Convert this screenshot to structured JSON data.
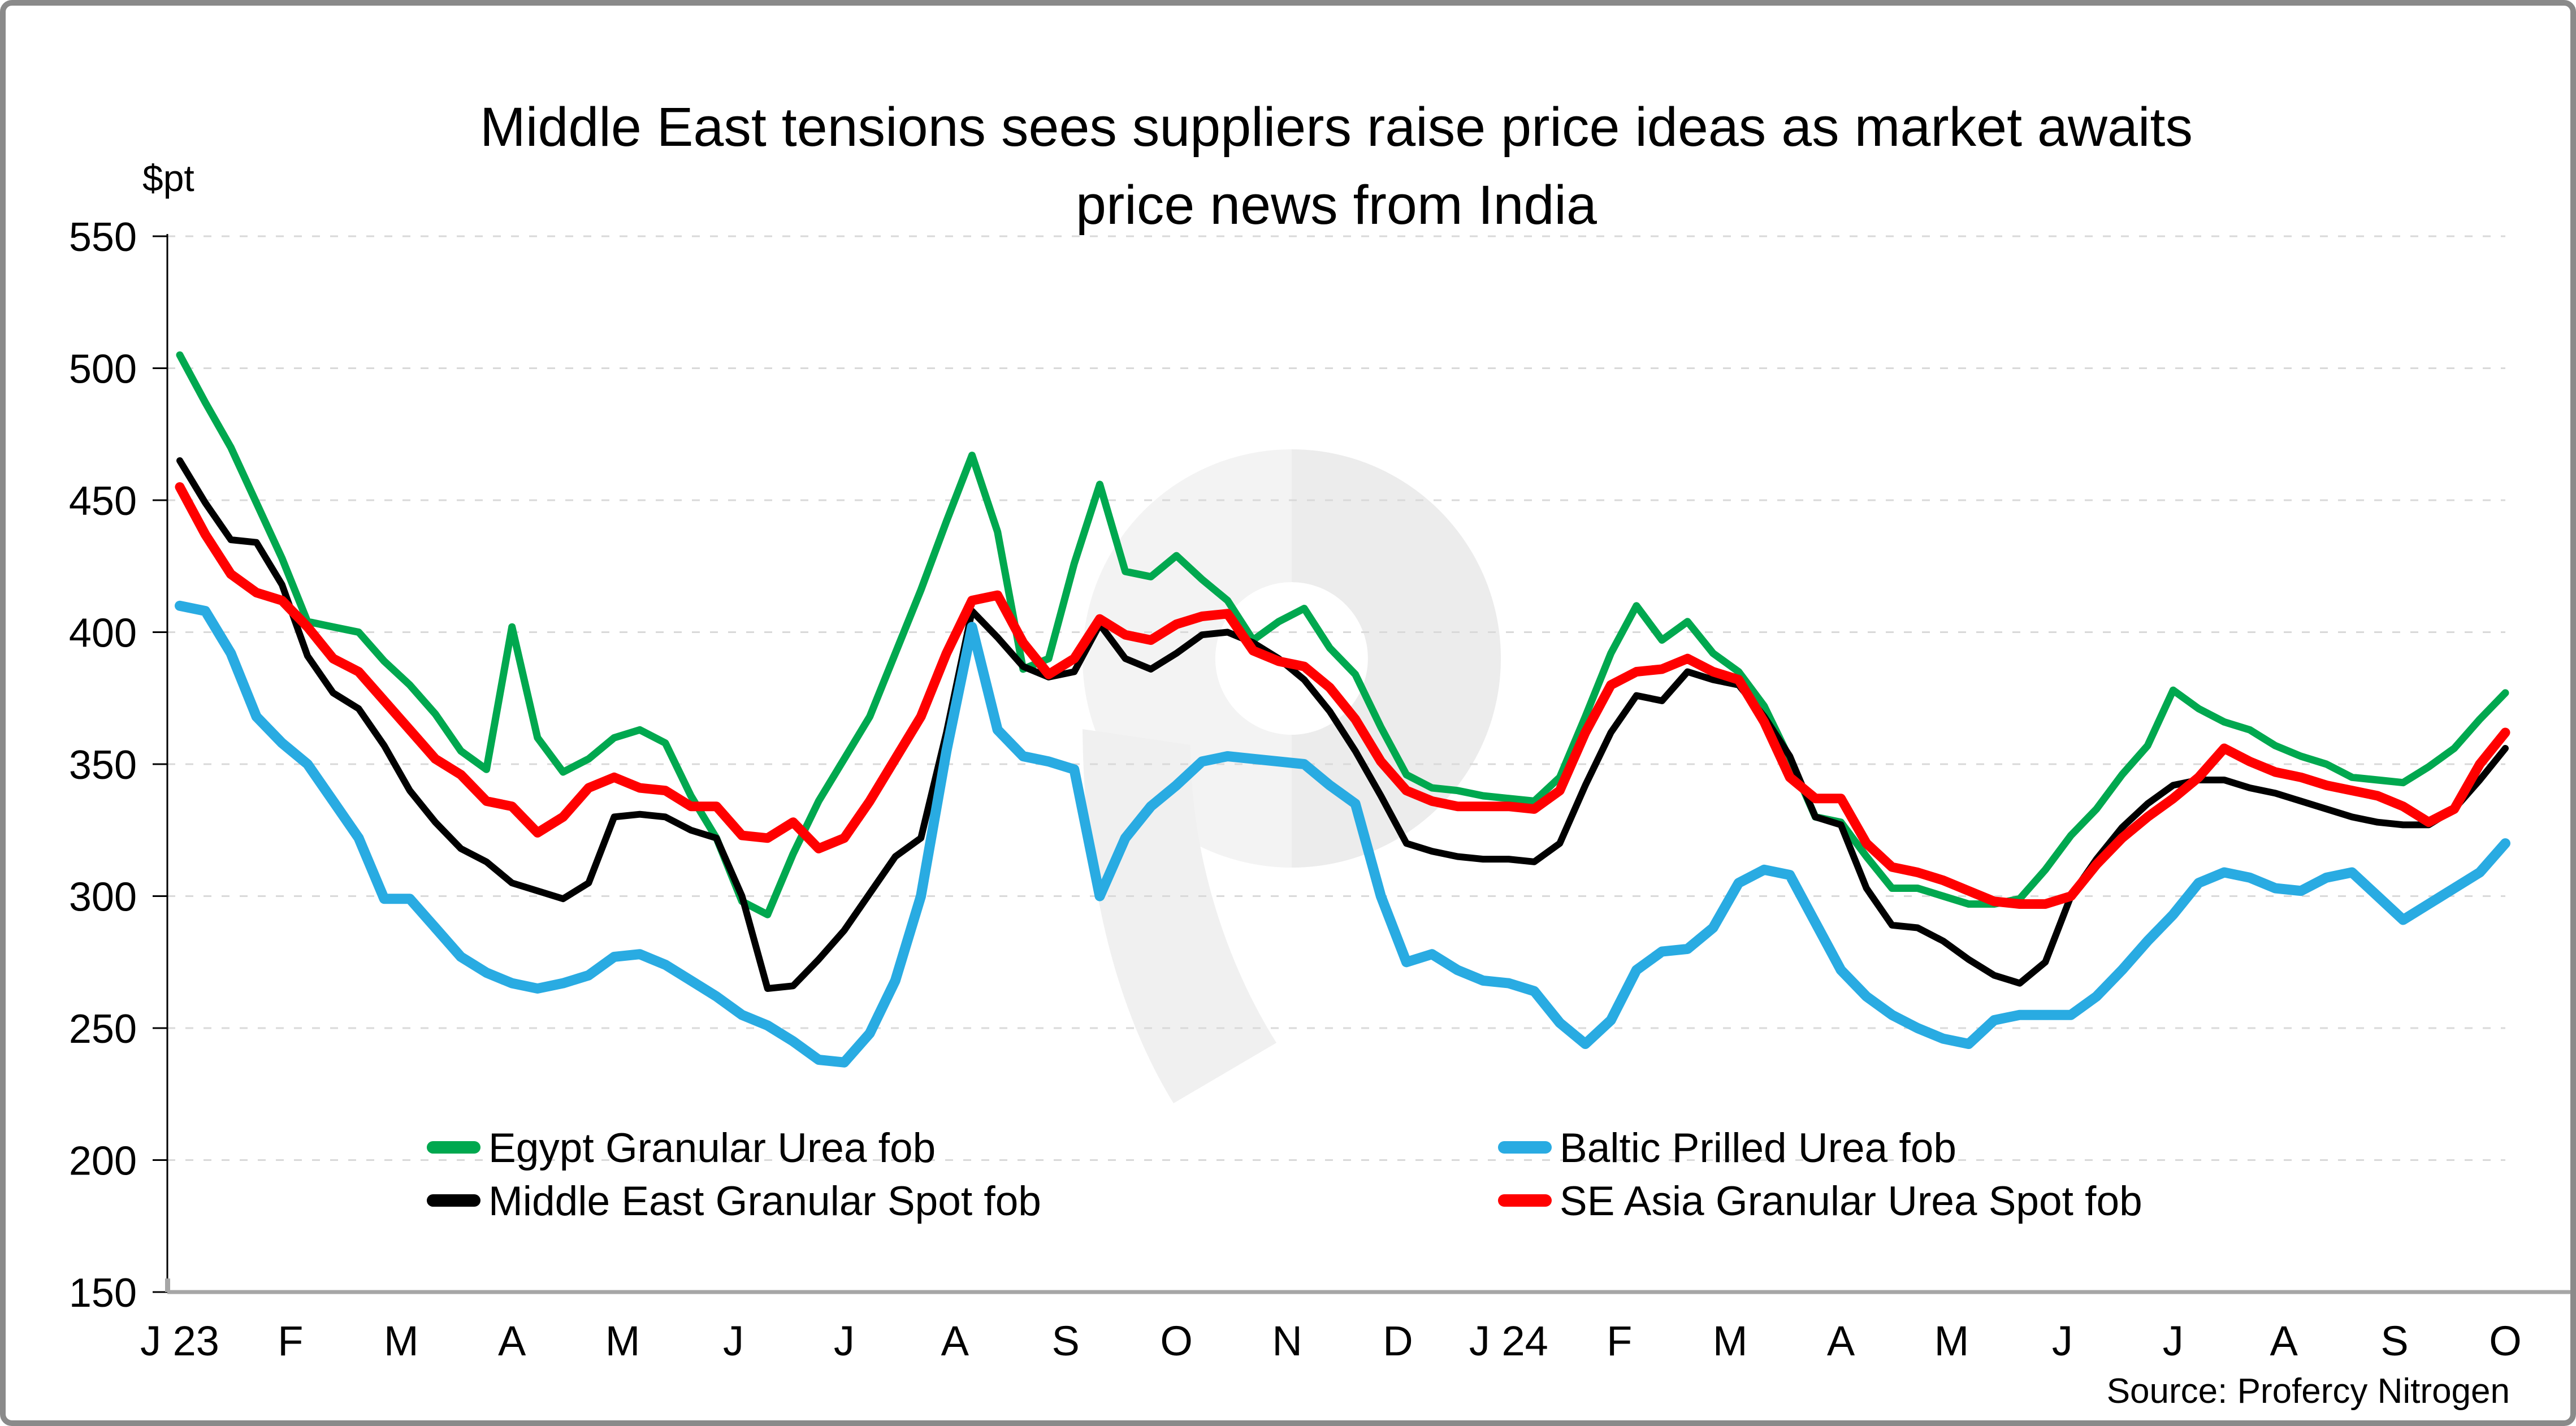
{
  "title": {
    "line1": "Middle East tensions sees suppliers raise price ideas as market awaits",
    "line2": "price news from India"
  },
  "y_axis_unit": "$pt",
  "source": "Source: Profercy Nitrogen",
  "watermark": "profercy-logo",
  "chart_data": {
    "type": "line",
    "title": "Middle East tensions sees suppliers raise price ideas as market awaits price news from India",
    "xlabel": "",
    "ylabel": "$pt",
    "ylim": [
      150,
      550
    ],
    "y_ticks": [
      150,
      200,
      250,
      300,
      350,
      400,
      450,
      500,
      550
    ],
    "x_ticks": [
      "J 23",
      "F",
      "M",
      "A",
      "M",
      "J",
      "J",
      "A",
      "S",
      "O",
      "N",
      "D",
      "J 24",
      "F",
      "M",
      "A",
      "M",
      "J",
      "J",
      "A",
      "S",
      "O"
    ],
    "x_description": "weekly spot price assessments, Jan 2023 - Oct 2024",
    "grid": "horizontal dashed",
    "legend_position": "bottom, two columns",
    "colors": {
      "egypt": "#00a84f",
      "middle_east": "#000000",
      "baltic": "#29abe2",
      "se_asia": "#ff0000",
      "gridline": "#d9d9d9",
      "x_axis": "#a6a6a6",
      "frame": "#8a8a8a",
      "watermark": "#f2f2f2"
    },
    "series": [
      {
        "name": "Egypt Granular Urea fob",
        "color": "#00a84f",
        "width": 13,
        "values": [
          505,
          487,
          470,
          449,
          428,
          404,
          402,
          400,
          389,
          380,
          369,
          355,
          348,
          402,
          360,
          347,
          352,
          360,
          363,
          358,
          338,
          322,
          298,
          293,
          316,
          336,
          352,
          368,
          392,
          416,
          442,
          467,
          438,
          386,
          390,
          426,
          456,
          423,
          421,
          429,
          420,
          412,
          397,
          404,
          409,
          394,
          384,
          364,
          346,
          341,
          340,
          338,
          337,
          336,
          345,
          368,
          392,
          410,
          397,
          404,
          392,
          385,
          372,
          352,
          330,
          328,
          315,
          303,
          303,
          300,
          297,
          297,
          299,
          310,
          323,
          333,
          346,
          357,
          378,
          371,
          366,
          363,
          357,
          353,
          350,
          345,
          344,
          343,
          349,
          356,
          367,
          377
        ]
      },
      {
        "name": "Middle East Granular Spot fob",
        "color": "#000000",
        "width": 12,
        "values": [
          465,
          449,
          435,
          434,
          418,
          391,
          377,
          371,
          357,
          340,
          328,
          318,
          313,
          305,
          302,
          299,
          305,
          330,
          331,
          330,
          325,
          322,
          300,
          265,
          266,
          276,
          287,
          301,
          315,
          322,
          362,
          408,
          398,
          387,
          383,
          385,
          403,
          390,
          386,
          392,
          399,
          400,
          396,
          390,
          382,
          370,
          355,
          338,
          320,
          317,
          315,
          314,
          314,
          313,
          320,
          342,
          362,
          376,
          374,
          385,
          382,
          380,
          368,
          353,
          330,
          327,
          303,
          289,
          288,
          283,
          276,
          270,
          267,
          275,
          300,
          314,
          326,
          335,
          342,
          344,
          344,
          341,
          339,
          336,
          333,
          330,
          328,
          327,
          327,
          333,
          344,
          356
        ]
      },
      {
        "name": "Baltic Prilled Urea fob",
        "color": "#29abe2",
        "width": 18,
        "values": [
          410,
          408,
          392,
          368,
          358,
          350,
          336,
          322,
          299,
          299,
          288,
          277,
          271,
          267,
          265,
          267,
          270,
          277,
          278,
          274,
          268,
          262,
          255,
          251,
          245,
          238,
          237,
          248,
          268,
          300,
          355,
          402,
          363,
          353,
          351,
          348,
          300,
          322,
          334,
          342,
          351,
          353,
          352,
          351,
          350,
          342,
          335,
          300,
          275,
          278,
          272,
          268,
          267,
          264,
          252,
          244,
          253,
          272,
          279,
          280,
          288,
          305,
          310,
          308,
          290,
          272,
          262,
          255,
          250,
          246,
          244,
          253,
          255,
          255,
          255,
          262,
          272,
          283,
          293,
          305,
          309,
          307,
          303,
          302,
          307,
          309,
          300,
          291,
          297,
          303,
          309,
          320
        ]
      },
      {
        "name": "SE Asia Granular Urea Spot fob",
        "color": "#ff0000",
        "width": 17,
        "values": [
          455,
          437,
          422,
          415,
          412,
          402,
          390,
          385,
          374,
          363,
          352,
          346,
          336,
          334,
          324,
          330,
          341,
          345,
          341,
          340,
          334,
          334,
          323,
          322,
          328,
          318,
          322,
          336,
          352,
          368,
          392,
          412,
          414,
          396,
          384,
          390,
          405,
          399,
          397,
          403,
          406,
          407,
          393,
          389,
          387,
          379,
          367,
          351,
          340,
          336,
          334,
          334,
          334,
          333,
          340,
          362,
          380,
          385,
          386,
          390,
          385,
          382,
          366,
          345,
          337,
          337,
          320,
          311,
          309,
          306,
          302,
          298,
          297,
          297,
          300,
          312,
          322,
          330,
          337,
          345,
          356,
          351,
          347,
          345,
          342,
          340,
          338,
          334,
          328,
          333,
          350,
          362
        ]
      }
    ]
  }
}
